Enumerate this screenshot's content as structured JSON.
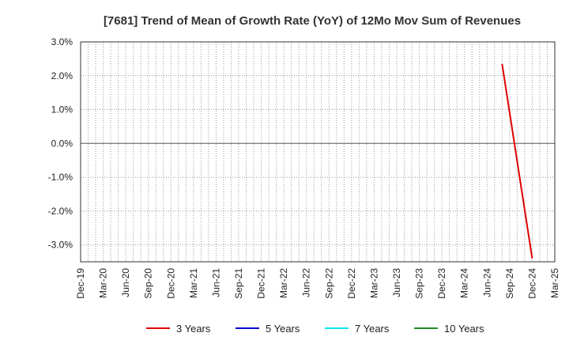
{
  "chart_data": {
    "type": "line",
    "title": "[7681]  Trend of Mean of Growth Rate (YoY) of 12Mo Mov Sum of Revenues",
    "xlabel": "",
    "ylabel": "",
    "x_tick_labels": [
      "Dec-19",
      "Mar-20",
      "Jun-20",
      "Sep-20",
      "Dec-20",
      "Mar-21",
      "Jun-21",
      "Sep-21",
      "Dec-21",
      "Mar-22",
      "Jun-22",
      "Sep-22",
      "Dec-22",
      "Mar-23",
      "Jun-23",
      "Sep-23",
      "Dec-23",
      "Mar-24",
      "Jun-24",
      "Sep-24",
      "Dec-24",
      "Mar-25"
    ],
    "y_ticks": [
      3.0,
      2.0,
      1.0,
      0.0,
      -1.0,
      -2.0,
      -3.0
    ],
    "y_tick_labels": [
      "3.0%",
      "2.0%",
      "1.0%",
      "0.0%",
      "-1.0%",
      "-2.0%",
      "-3.0%"
    ],
    "ylim": [
      -3.5,
      3.0
    ],
    "grid": true,
    "legend_position": "bottom",
    "series": [
      {
        "name": "3 Years",
        "color": "#e00000",
        "x": [
          "Aug-24",
          "Dec-24"
        ],
        "values": [
          2.35,
          -3.4
        ]
      },
      {
        "name": "5 Years",
        "color": "#0000cc",
        "x": [],
        "values": []
      },
      {
        "name": "7 Years",
        "color": "#00e5ee",
        "x": [],
        "values": []
      },
      {
        "name": "10 Years",
        "color": "#228b22",
        "x": [],
        "values": []
      }
    ]
  }
}
